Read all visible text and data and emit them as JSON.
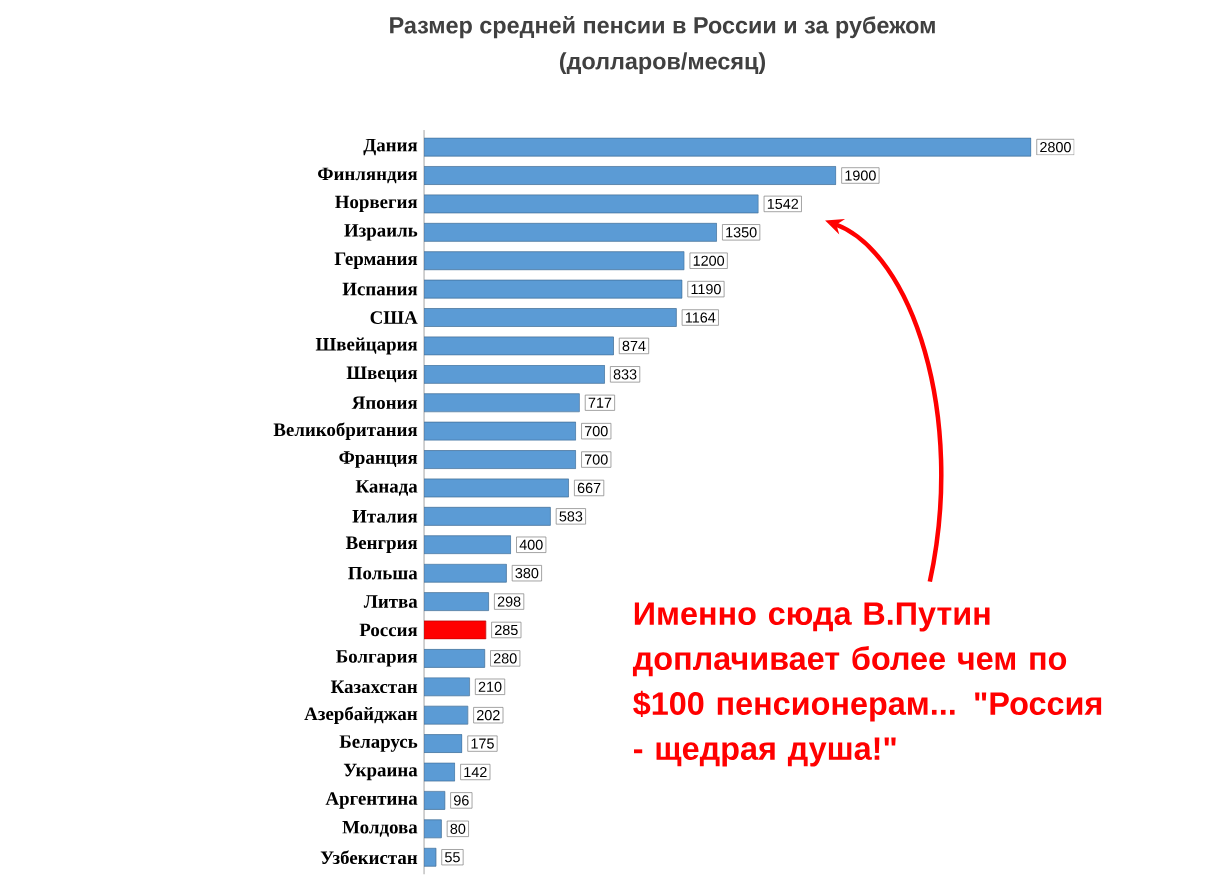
{
  "chart_data": {
    "type": "bar",
    "orientation": "horizontal",
    "title": "Размер средней пенсии в России и за рубежом",
    "subtitle": "(долларов/месяц)",
    "categories": [
      "Дания",
      "Финляндия",
      "Норвегия",
      "Израиль",
      "Германия",
      "Испания",
      "США",
      "Швейцария",
      "Швеция",
      "Япония",
      "Великобритания",
      "Франция",
      "Канада",
      "Италия",
      "Венгрия",
      "Польша",
      "Литва",
      "Россия",
      "Болгария",
      "Казахстан",
      "Азербайджан",
      "Беларусь",
      "Украина",
      "Аргентина",
      "Молдова",
      "Узбекистан"
    ],
    "values": [
      2800,
      1900,
      1542,
      1350,
      1200,
      1190,
      1164,
      874,
      833,
      717,
      700,
      700,
      667,
      583,
      400,
      380,
      298,
      285,
      280,
      210,
      202,
      175,
      142,
      96,
      80,
      55
    ],
    "colors": [
      "#5b9bd5",
      "#5b9bd5",
      "#5b9bd5",
      "#5b9bd5",
      "#5b9bd5",
      "#5b9bd5",
      "#5b9bd5",
      "#5b9bd5",
      "#5b9bd5",
      "#5b9bd5",
      "#5b9bd5",
      "#5b9bd5",
      "#5b9bd5",
      "#5b9bd5",
      "#5b9bd5",
      "#5b9bd5",
      "#5b9bd5",
      "#ff0000",
      "#5b9bd5",
      "#5b9bd5",
      "#5b9bd5",
      "#5b9bd5",
      "#5b9bd5",
      "#5b9bd5",
      "#5b9bd5",
      "#5b9bd5"
    ],
    "xlim": [
      0,
      3000
    ],
    "data_labels": true,
    "tick_labels": "y",
    "annotations": [
      "Именно сюда В.Путин доплачивает более чем по $100 пенсионерам... \"Россия - щедрая душа!\""
    ]
  }
}
